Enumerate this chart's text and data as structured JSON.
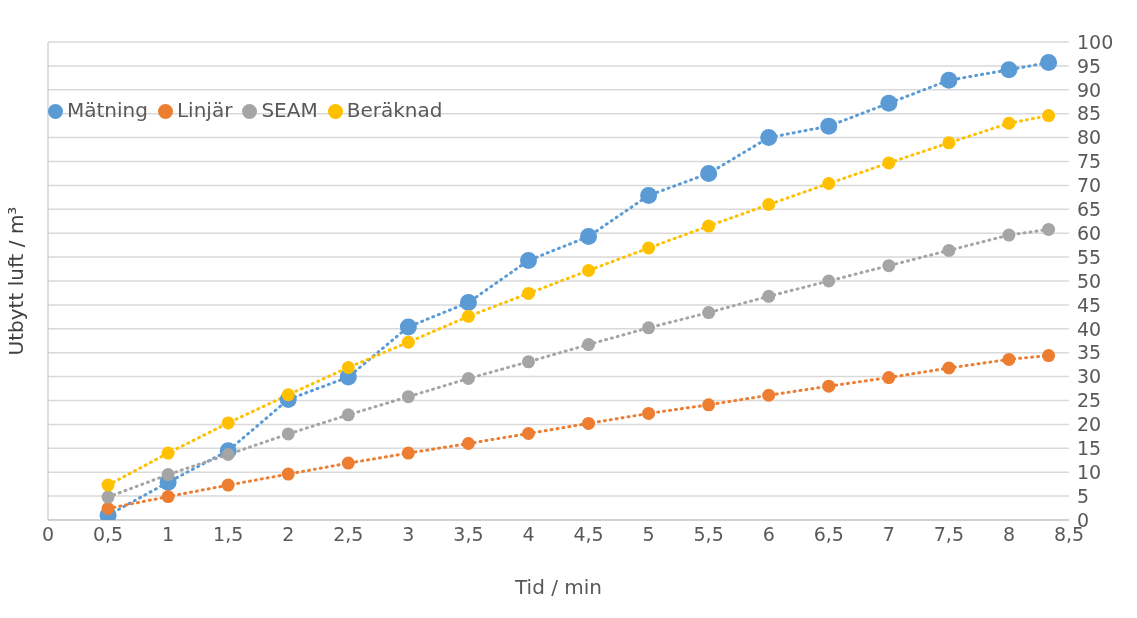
{
  "chart_data": {
    "type": "line",
    "xlabel": "Tid / min",
    "ylabel": "Utbytt luft / m³",
    "x": [
      0.5,
      1,
      1.5,
      2,
      2.5,
      3,
      3.5,
      4,
      4.5,
      5,
      5.5,
      6,
      6.5,
      7,
      7.5,
      8,
      8.33
    ],
    "series": [
      {
        "name": "Mätning",
        "color": "#5b9bd5",
        "values": [
          1.0,
          7.9,
          14.5,
          25.2,
          29.9,
          40.4,
          45.5,
          54.3,
          59.3,
          67.9,
          72.5,
          80.0,
          82.4,
          87.2,
          92.0,
          94.2,
          95.7
        ]
      },
      {
        "name": "Linjär",
        "color": "#ed7d31",
        "values": [
          2.4,
          4.9,
          7.3,
          9.6,
          11.9,
          14.0,
          16.0,
          18.1,
          20.2,
          22.3,
          24.1,
          26.1,
          28.0,
          29.8,
          31.8,
          33.6,
          34.4
        ]
      },
      {
        "name": "SEAM",
        "color": "#a5a5a5",
        "values": [
          4.8,
          9.5,
          13.7,
          18.0,
          22.0,
          25.8,
          29.6,
          33.1,
          36.7,
          40.2,
          43.4,
          46.8,
          50.0,
          53.2,
          56.4,
          59.6,
          60.8
        ]
      },
      {
        "name": "Beräknad",
        "color": "#ffc000",
        "values": [
          7.3,
          14.0,
          20.3,
          26.2,
          31.9,
          37.2,
          42.6,
          47.4,
          52.2,
          56.9,
          61.5,
          66.0,
          70.4,
          74.7,
          78.9,
          83.0,
          84.6
        ]
      }
    ],
    "xlim": [
      0,
      8.5
    ],
    "xticks": [
      0,
      {
        "value": 0.5,
        "label": "0,5"
      },
      1,
      {
        "value": 1.5,
        "label": "1,5"
      },
      2,
      {
        "value": 2.5,
        "label": "2,5"
      },
      3,
      {
        "value": 3.5,
        "label": "3,5"
      },
      4,
      {
        "value": 4.5,
        "label": "4,5"
      },
      5,
      {
        "value": 5.5,
        "label": "5,5"
      },
      6,
      {
        "value": 6.5,
        "label": "6,5"
      },
      7,
      {
        "value": 7.5,
        "label": "7,5"
      },
      8,
      {
        "value": 8.5,
        "label": "8,5"
      }
    ],
    "ylim": [
      0,
      100
    ],
    "yticks": [
      0,
      5,
      10,
      15,
      20,
      25,
      30,
      35,
      40,
      45,
      50,
      55,
      60,
      65,
      70,
      75,
      80,
      85,
      90,
      95,
      100
    ],
    "grid": "y",
    "legend": "top left",
    "marker": "circle",
    "line_style": "dotted"
  }
}
